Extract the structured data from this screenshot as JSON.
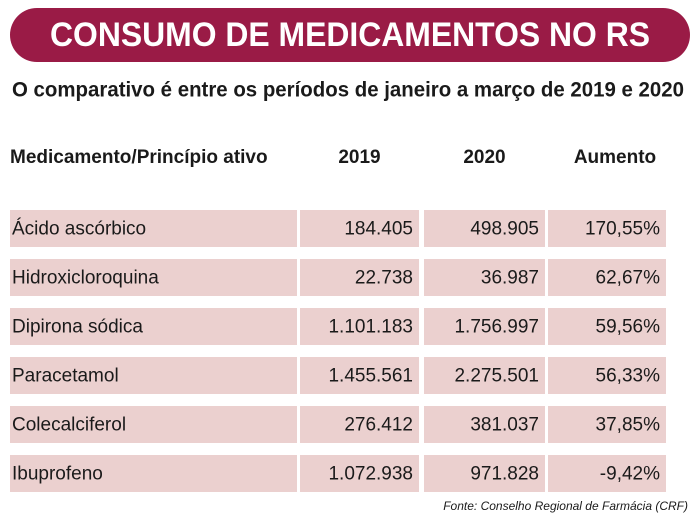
{
  "header": {
    "title": "CONSUMO DE MEDICAMENTOS NO RS",
    "subtitle": "O comparativo é entre os períodos de janeiro a março de 2019 e 2020"
  },
  "table": {
    "columns": [
      "Medicamento/Princípio ativo",
      "2019",
      "2020",
      "Aumento"
    ],
    "rows": [
      [
        "Ácido ascórbico",
        "184.405",
        "498.905",
        "170,55%"
      ],
      [
        "Hidroxicloroquina",
        "22.738",
        "36.987",
        "62,67%"
      ],
      [
        "Dipirona sódica",
        "1.101.183",
        "1.756.997",
        "59,56%"
      ],
      [
        "Paracetamol",
        "1.455.561",
        "2.275.501",
        "56,33%"
      ],
      [
        "Colecalciferol",
        "276.412",
        "381.037",
        "37,85%"
      ],
      [
        "Ibuprofeno",
        "1.072.938",
        "971.828",
        "-9,42%"
      ]
    ]
  },
  "footer": {
    "source": "Fonte: Conselho Regional de Farmácia (CRF)"
  }
}
